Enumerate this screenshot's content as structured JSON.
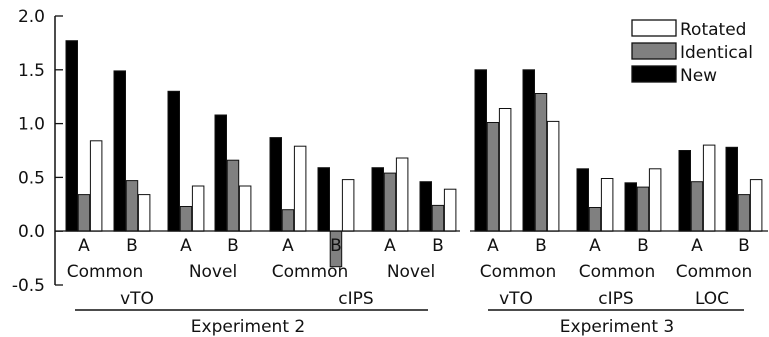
{
  "chart_data": {
    "type": "bar",
    "title": "",
    "xlabel": "",
    "ylabel": "",
    "ylim": [
      -0.5,
      2.0
    ],
    "yticks": [
      -0.5,
      0.0,
      0.5,
      1.0,
      1.5,
      2.0
    ],
    "ytick_labels": [
      "-0.5",
      "0.0",
      "0.5",
      "1.0",
      "1.5",
      "2.0"
    ],
    "grid": false,
    "legend": {
      "placement": "top-right",
      "order": [
        "Rotated",
        "Identical",
        "New"
      ]
    },
    "series": [
      {
        "name": "New",
        "color": "#000000"
      },
      {
        "name": "Identical",
        "color": "#808080"
      },
      {
        "name": "Rotated",
        "color": "#ffffff"
      }
    ],
    "categories": [
      {
        "label": "A",
        "values": [
          1.77,
          0.34,
          0.84
        ]
      },
      {
        "label": "B",
        "values": [
          1.49,
          0.47,
          0.34
        ]
      },
      {
        "label": "A",
        "values": [
          1.3,
          0.23,
          0.42
        ]
      },
      {
        "label": "B",
        "values": [
          1.08,
          0.66,
          0.42
        ]
      },
      {
        "label": "A",
        "values": [
          0.87,
          0.2,
          0.79
        ]
      },
      {
        "label": "B",
        "values": [
          0.59,
          -0.33,
          0.48
        ]
      },
      {
        "label": "A",
        "values": [
          0.59,
          0.54,
          0.68
        ]
      },
      {
        "label": "B",
        "values": [
          0.46,
          0.24,
          0.39
        ]
      },
      {
        "label": "A",
        "values": [
          1.5,
          1.01,
          1.14
        ]
      },
      {
        "label": "B",
        "values": [
          1.5,
          1.28,
          1.02
        ]
      },
      {
        "label": "A",
        "values": [
          0.58,
          0.22,
          0.49
        ]
      },
      {
        "label": "B",
        "values": [
          0.45,
          0.41,
          0.58
        ]
      },
      {
        "label": "A",
        "values": [
          0.75,
          0.46,
          0.8
        ]
      },
      {
        "label": "B",
        "values": [
          0.78,
          0.34,
          0.48
        ]
      }
    ],
    "pair_labels": [
      "Common",
      "Novel",
      "Common",
      "Novel",
      "Common",
      "Common",
      "Common"
    ],
    "region_labels": [
      "vTO",
      "cIPS",
      "vTO",
      "cIPS",
      "LOC"
    ],
    "experiment_labels": [
      "Experiment 2",
      "Experiment 3"
    ]
  }
}
